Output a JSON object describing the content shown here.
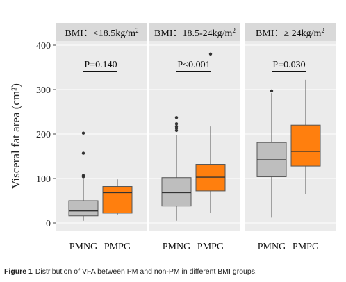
{
  "chart_data": {
    "type": "box",
    "ylabel": "Visceral fat area (cm²)",
    "ylim": [
      0,
      400
    ],
    "yticks": [
      0,
      100,
      200,
      300,
      400
    ],
    "groups": [
      "PMNG",
      "PMPG"
    ],
    "colors": {
      "PMNG": "#bebebe",
      "PMPG": "#ff7f0e"
    },
    "panels": [
      {
        "strip_prefix": "BMI：<18.5kg/m",
        "strip_sup": "2",
        "p_value": "P=0.140",
        "boxes": [
          {
            "group": "PMNG",
            "min": 5,
            "q1": 16,
            "median": 27,
            "q3": 50,
            "max": 98,
            "outliers": [
              202,
              157,
              107,
              104
            ]
          },
          {
            "group": "PMPG",
            "min": 18,
            "q1": 22,
            "median": 68,
            "q3": 82,
            "max": 98,
            "outliers": []
          }
        ]
      },
      {
        "strip_prefix": "BMI：18.5-24kg/m",
        "strip_sup": "2",
        "p_value": "P<0.001",
        "boxes": [
          {
            "group": "PMNG",
            "min": 5,
            "q1": 38,
            "median": 68,
            "q3": 102,
            "max": 198,
            "outliers": [
              237,
              223,
              217,
              213,
              208
            ]
          },
          {
            "group": "PMPG",
            "min": 22,
            "q1": 72,
            "median": 103,
            "q3": 132,
            "max": 217,
            "outliers": [
              380
            ]
          }
        ]
      },
      {
        "strip_prefix": "BMI：≥ 24kg/m",
        "strip_sup": "2",
        "p_value": "P=0.030",
        "boxes": [
          {
            "group": "PMNG",
            "min": 12,
            "q1": 104,
            "median": 142,
            "q3": 181,
            "max": 292,
            "outliers": [
              297
            ]
          },
          {
            "group": "PMPG",
            "min": 65,
            "q1": 128,
            "median": 161,
            "q3": 220,
            "max": 322,
            "outliers": []
          }
        ]
      }
    ]
  },
  "caption": {
    "label": "Figure 1",
    "text": "Distribution of VFA between PM and non-PM in different BMI groups."
  }
}
